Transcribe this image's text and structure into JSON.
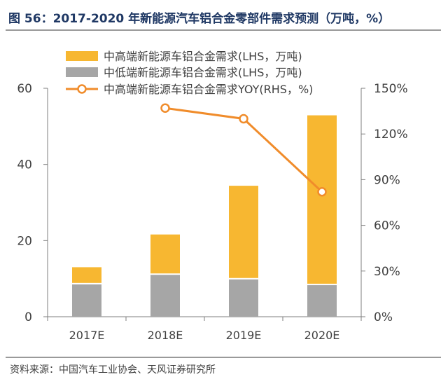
{
  "title": "图 56：2017-2020 年新能源汽车铝合金零部件需求预测（万吨，%）",
  "source": "资料来源：中国汽车工业协会、天风证券研究所",
  "colors": {
    "high": "#f7b731",
    "low": "#a6a6a6",
    "line": "#f08c2b",
    "axis": "#7f7f7f",
    "title": "#1f3864"
  },
  "chart_data": {
    "type": "bar",
    "stacked": true,
    "categories": [
      "2017E",
      "2018E",
      "2019E",
      "2020E"
    ],
    "series": [
      {
        "name": "中低端新能源车铝合金需求(LHS，万吨)",
        "values": [
          8.5,
          11.0,
          9.8,
          8.3
        ],
        "axis": "left",
        "color": "#a6a6a6"
      },
      {
        "name": "中高端新能源车铝合金需求(LHS，万吨)",
        "values": [
          4.5,
          10.6,
          24.6,
          44.6
        ],
        "axis": "left",
        "color": "#f7b731"
      },
      {
        "name": "中高端新能源车铝合金需求YOY(RHS，%)",
        "type": "line",
        "values": [
          null,
          1.37,
          1.3,
          0.82
        ],
        "axis": "right",
        "color": "#f08c2b"
      }
    ],
    "legend_order": [
      1,
      0,
      2
    ],
    "ylim_left": [
      0,
      60
    ],
    "yticks_left": [
      0,
      20,
      40,
      60
    ],
    "ylim_right": [
      0,
      1.5
    ],
    "yticks_right_labels": [
      "0%",
      "30%",
      "60%",
      "90%",
      "120%",
      "150%"
    ],
    "legend_position": "top-left",
    "grid": false
  }
}
